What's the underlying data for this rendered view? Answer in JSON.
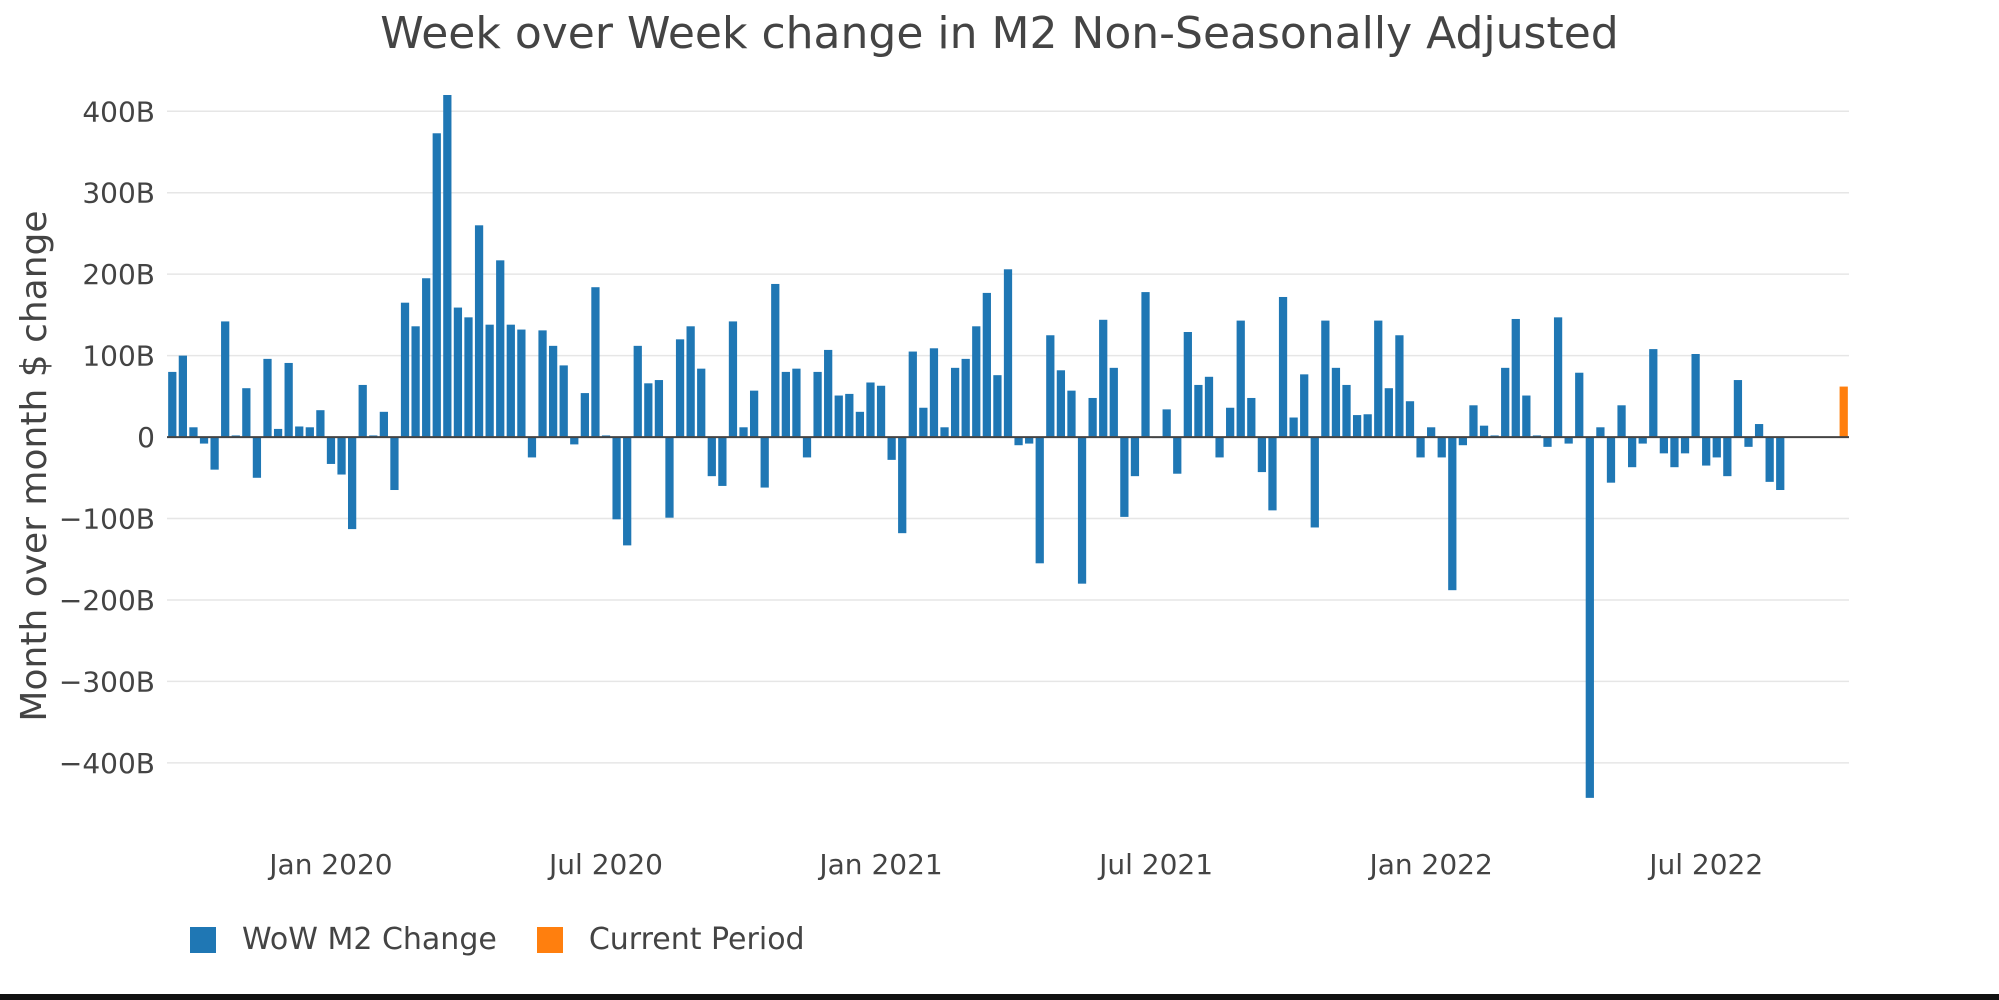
{
  "chart_data": {
    "type": "bar",
    "title": "Week over Week change in M2 Non-Seasonally Adjusted",
    "xlabel": "",
    "ylabel": "Month over month $ change",
    "y_unit": "B",
    "ylim": [
      -480,
      420
    ],
    "y_ticks": [
      -400,
      -300,
      -200,
      -100,
      0,
      100,
      200,
      300,
      400
    ],
    "y_tick_labels": [
      "−400B",
      "−300B",
      "−200B",
      "−100B",
      "0",
      "100B",
      "200B",
      "300B",
      "400B"
    ],
    "x_tick_labels": [
      {
        "label": "Jan 2020",
        "week_index": 15
      },
      {
        "label": "Jul 2020",
        "week_index": 41
      },
      {
        "label": "Jan 2021",
        "week_index": 67
      },
      {
        "label": "Jul 2021",
        "week_index": 93
      },
      {
        "label": "Jan 2022",
        "week_index": 119
      },
      {
        "label": "Jul 2022",
        "week_index": 145
      }
    ],
    "series": [
      {
        "name": "WoW M2 Change",
        "color": "#1f77b4",
        "start_week_index": 0,
        "values": [
          80,
          100,
          12,
          -8,
          -40,
          142,
          2,
          60,
          -50,
          96,
          10,
          91,
          13,
          12,
          33,
          -33,
          -46,
          -113,
          64,
          2,
          31,
          -65,
          165,
          136,
          195,
          373,
          420,
          159,
          147,
          260,
          138,
          217,
          138,
          132,
          -25,
          131,
          112,
          88,
          -9,
          54,
          184,
          2,
          -101,
          -133,
          112,
          66,
          70,
          -99,
          120,
          136,
          84,
          -48,
          -60,
          142,
          12,
          57,
          -62,
          188,
          80,
          84,
          -25,
          80,
          107,
          51,
          53,
          31,
          67,
          63,
          -28,
          -118,
          105,
          36,
          109,
          12,
          85,
          96,
          136,
          177,
          76,
          206,
          -10,
          -8,
          -155,
          125,
          82,
          57,
          -180,
          48,
          144,
          85,
          -98,
          -48,
          178,
          0,
          34,
          -45,
          129,
          64,
          74,
          -25,
          36,
          143,
          48,
          -43,
          -90,
          172,
          24,
          77,
          -111,
          143,
          85,
          64,
          27,
          28,
          143,
          60,
          125,
          44,
          -25,
          12,
          -25,
          -188,
          -10,
          39,
          14,
          2,
          85,
          145,
          51,
          2,
          -12,
          147,
          -8,
          79,
          -443,
          12,
          -56,
          39,
          -37,
          -8,
          108,
          -20,
          -37,
          -20,
          102,
          -35,
          -25,
          -48,
          70,
          -12,
          16,
          -55,
          -65
        ]
      },
      {
        "name": "Current Period",
        "color": "#ff7f0e",
        "start_week_index": 158,
        "values": [
          62
        ]
      }
    ],
    "grid": true,
    "legend_position": "bottom-left"
  }
}
